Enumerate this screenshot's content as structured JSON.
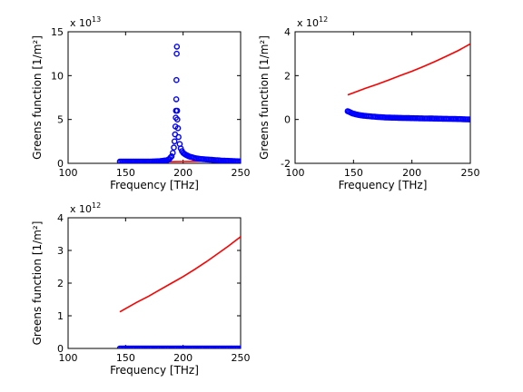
{
  "chart_data": [
    {
      "type": "line+scatter",
      "xlabel": "Frequency [THz]",
      "ylabel": "Greens function [1/m²]",
      "multiplier": "x 10",
      "multiplier_exp": "13",
      "xlim": [
        100,
        250
      ],
      "ylim": [
        0,
        15
      ],
      "xticks": [
        "100",
        "150",
        "200",
        "250"
      ],
      "yticks": [
        "0",
        "5",
        "10",
        "15"
      ],
      "series": [
        {
          "style": "line",
          "color": "#ff0000",
          "x": [
            145,
            150,
            160,
            170,
            180,
            190,
            200,
            210,
            220,
            230,
            240,
            250
          ],
          "y": [
            0.11,
            0.12,
            0.13,
            0.15,
            0.17,
            0.19,
            0.21,
            0.23,
            0.25,
            0.28,
            0.31,
            0.34
          ]
        },
        {
          "style": "markers",
          "color": "#0000ff",
          "x": [
            145,
            150,
            155,
            160,
            165,
            170,
            175,
            180,
            183,
            186,
            188,
            190,
            191,
            192,
            192.5,
            193,
            193.3,
            193.6,
            193.8,
            194,
            194.2,
            194.4,
            194.6,
            194.8,
            195,
            195.5,
            196,
            197,
            198,
            199,
            200,
            202,
            205,
            210,
            215,
            220,
            225,
            230,
            235,
            240,
            245,
            250
          ],
          "y": [
            0.2,
            0.2,
            0.2,
            0.2,
            0.2,
            0.2,
            0.22,
            0.25,
            0.3,
            0.35,
            0.5,
            0.8,
            1.2,
            1.8,
            2.5,
            3.3,
            4.2,
            5.2,
            6.0,
            7.3,
            9.5,
            12.5,
            13.3,
            6.0,
            5.0,
            4.0,
            3.0,
            2.2,
            1.7,
            1.4,
            1.2,
            1.0,
            0.8,
            0.6,
            0.5,
            0.45,
            0.4,
            0.35,
            0.3,
            0.28,
            0.25,
            0.22
          ]
        }
      ]
    },
    {
      "type": "line+scatter",
      "xlabel": "Frequency [THz]",
      "ylabel": "Greens function [1/m²]",
      "multiplier": "x 10",
      "multiplier_exp": "12",
      "xlim": [
        100,
        250
      ],
      "ylim": [
        -2,
        4
      ],
      "xticks": [
        "100",
        "150",
        "200",
        "250"
      ],
      "yticks": [
        "-2",
        "0",
        "2",
        "4"
      ],
      "series": [
        {
          "style": "line",
          "color": "#ff0000",
          "x": [
            145,
            150,
            160,
            170,
            180,
            190,
            200,
            210,
            220,
            230,
            240,
            250
          ],
          "y": [
            1.12,
            1.22,
            1.42,
            1.6,
            1.8,
            2.0,
            2.2,
            2.42,
            2.65,
            2.9,
            3.15,
            3.45
          ]
        },
        {
          "style": "markers",
          "color": "#0000ff",
          "x": [
            145,
            147,
            149,
            151,
            153,
            156,
            159,
            163,
            167,
            172,
            178,
            185,
            192,
            200,
            210,
            220,
            230,
            240,
            250
          ],
          "y": [
            0.38,
            0.33,
            0.28,
            0.25,
            0.22,
            0.19,
            0.17,
            0.15,
            0.13,
            0.11,
            0.09,
            0.08,
            0.07,
            0.06,
            0.05,
            0.04,
            0.03,
            0.02,
            0.0
          ]
        }
      ]
    },
    {
      "type": "line+scatter",
      "xlabel": "Frequency [THz]",
      "ylabel": "Greens function [1/m²]",
      "multiplier": "x 10",
      "multiplier_exp": "12",
      "xlim": [
        100,
        250
      ],
      "ylim": [
        0,
        4
      ],
      "xticks": [
        "100",
        "150",
        "200",
        "250"
      ],
      "yticks": [
        "0",
        "1",
        "2",
        "3",
        "4"
      ],
      "series": [
        {
          "style": "line",
          "color": "#ff0000",
          "x": [
            145,
            150,
            160,
            170,
            180,
            190,
            200,
            210,
            220,
            230,
            240,
            250
          ],
          "y": [
            1.12,
            1.22,
            1.42,
            1.6,
            1.8,
            2.0,
            2.2,
            2.42,
            2.65,
            2.9,
            3.15,
            3.42
          ]
        },
        {
          "style": "markers",
          "color": "#0000ff",
          "x": [
            145,
            150,
            160,
            170,
            180,
            190,
            200,
            210,
            220,
            230,
            240,
            250
          ],
          "y": [
            0,
            0,
            0,
            0,
            0,
            0,
            0,
            0,
            0,
            0,
            0,
            0
          ]
        }
      ]
    }
  ]
}
